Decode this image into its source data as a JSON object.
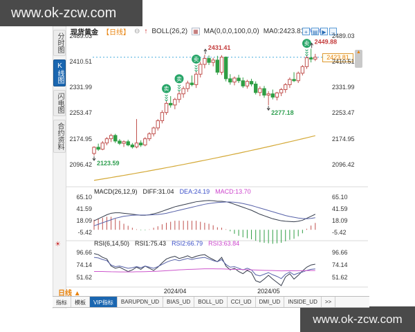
{
  "watermarks": {
    "top": "www.ok-zcw.com",
    "bottom": "www.ok-zcw.com"
  },
  "header": {
    "symbol": "现货黄金",
    "period": "【日线】",
    "minus_icon_glyph": "⊖",
    "up_arrow_glyph": "↑",
    "boll_label": "BOLL(26,2)",
    "ma_chip_glyph": "▦",
    "ma_settings": "MA(0,0,0,100,0,0)",
    "ma0_value": "MA0:2423.81",
    "ma0_extra": "MA0:"
  },
  "toolbar": {
    "icons": [
      {
        "name": "add-view-icon",
        "glyph": "+"
      },
      {
        "name": "panel-layout-icon",
        "glyph": "▤"
      },
      {
        "name": "play-icon",
        "glyph": "▶"
      },
      {
        "name": "expand-icon",
        "glyph": "→"
      }
    ]
  },
  "sidebar": {
    "tabs": [
      {
        "label": "分时图",
        "active": false
      },
      {
        "label": "K线图",
        "active": true
      },
      {
        "label": "闪电图",
        "active": false
      },
      {
        "label": "合约资料",
        "active": false
      }
    ]
  },
  "price_tag": {
    "value": "2423.81"
  },
  "period_selector": {
    "label": "日线 ▲"
  },
  "sun_icon_glyph": "☀",
  "indicator_tabs": {
    "items": [
      "指标",
      "模板",
      "VIP指标",
      "BARUPDN_UD",
      "BIAS_UD",
      "BOLL_UD",
      "CCI_UD",
      "DMI_UD",
      "INSIDE_UD",
      ">>"
    ],
    "active": "VIP指标"
  },
  "colors": {
    "up": "#c0504d",
    "down": "#2f9e44",
    "ma_line": "#d4a937",
    "dash_line": "#45aadd",
    "accent_orange": "#e8820c",
    "tab_blue": "#1a66b0",
    "annotation_red": "#c43c3c",
    "annotation_green": "#2e9e4f",
    "diff_line": "#333a4a",
    "dea_line": "#5560a8",
    "magenta": "#cc55cc",
    "marker_green": "#27a568"
  },
  "chart_data": {
    "type": "candlestick",
    "title": "现货黄金 日线",
    "price_axis_labels": [
      "2489.03",
      "2410.51",
      "2331.99",
      "2253.47",
      "2174.95",
      "2096.42"
    ],
    "x_labels": [
      "2024/04",
      "2024/05"
    ],
    "x_label_indices": [
      19,
      41
    ],
    "current_price": 2423.81,
    "candles_ohlc": [
      [
        2130,
        2152,
        2123.59,
        2149
      ],
      [
        2149,
        2160,
        2138,
        2143
      ],
      [
        2143,
        2168,
        2140,
        2162
      ],
      [
        2162,
        2180,
        2155,
        2175
      ],
      [
        2175,
        2190,
        2165,
        2185
      ],
      [
        2185,
        2190,
        2162,
        2168
      ],
      [
        2168,
        2174,
        2156,
        2161
      ],
      [
        2161,
        2170,
        2150,
        2166
      ],
      [
        2166,
        2172,
        2152,
        2156
      ],
      [
        2156,
        2162,
        2145,
        2150
      ],
      [
        2150,
        2235,
        2146,
        2162
      ],
      [
        2162,
        2170,
        2150,
        2156
      ],
      [
        2156,
        2180,
        2152,
        2175
      ],
      [
        2175,
        2195,
        2168,
        2190
      ],
      [
        2190,
        2212,
        2182,
        2208
      ],
      [
        2208,
        2235,
        2200,
        2230
      ],
      [
        2230,
        2262,
        2222,
        2255
      ],
      [
        2255,
        2290,
        2248,
        2283
      ],
      [
        2283,
        2305,
        2270,
        2278
      ],
      [
        2278,
        2300,
        2265,
        2295
      ],
      [
        2295,
        2320,
        2285,
        2312
      ],
      [
        2312,
        2335,
        2300,
        2328
      ],
      [
        2328,
        2352,
        2318,
        2345
      ],
      [
        2345,
        2368,
        2335,
        2340
      ],
      [
        2340,
        2380,
        2330,
        2372
      ],
      [
        2372,
        2410,
        2362,
        2402
      ],
      [
        2402,
        2431.41,
        2390,
        2420
      ],
      [
        2420,
        2429,
        2400,
        2408
      ],
      [
        2408,
        2422,
        2396,
        2415
      ],
      [
        2415,
        2428,
        2370,
        2378
      ],
      [
        2378,
        2430,
        2370,
        2424
      ],
      [
        2424,
        2426,
        2350,
        2358
      ],
      [
        2358,
        2372,
        2340,
        2348
      ],
      [
        2348,
        2365,
        2338,
        2360
      ],
      [
        2360,
        2370,
        2345,
        2352
      ],
      [
        2352,
        2362,
        2330,
        2336
      ],
      [
        2336,
        2355,
        2328,
        2350
      ],
      [
        2350,
        2358,
        2335,
        2342
      ],
      [
        2342,
        2350,
        2310,
        2316
      ],
      [
        2316,
        2335,
        2305,
        2328
      ],
      [
        2328,
        2336,
        2300,
        2308
      ],
      [
        2308,
        2320,
        2277.18,
        2312
      ],
      [
        2312,
        2325,
        2295,
        2302
      ],
      [
        2302,
        2318,
        2292,
        2315
      ],
      [
        2315,
        2330,
        2305,
        2325
      ],
      [
        2325,
        2345,
        2315,
        2340
      ],
      [
        2340,
        2362,
        2330,
        2356
      ],
      [
        2356,
        2378,
        2348,
        2352
      ],
      [
        2352,
        2380,
        2345,
        2375
      ],
      [
        2375,
        2400,
        2368,
        2395
      ],
      [
        2395,
        2428,
        2388,
        2422
      ],
      [
        2422,
        2449.88,
        2408,
        2418
      ],
      [
        2418,
        2434,
        2412,
        2423.81
      ]
    ],
    "ma100": [
      2048,
      2050.1,
      2052.2,
      2054.4,
      2056.6,
      2058.8,
      2061,
      2063.2,
      2065.4,
      2067.7,
      2070,
      2072.3,
      2074.6,
      2077,
      2079.4,
      2081.8,
      2084.2,
      2086.6,
      2089,
      2091.5,
      2094,
      2096.5,
      2099,
      2101.6,
      2104.2,
      2106.8,
      2109.4,
      2112,
      2114.6,
      2117.3,
      2120,
      2122.7,
      2125.4,
      2128.2,
      2130.9,
      2133.8,
      2136.6,
      2139.4,
      2142.2,
      2145.1,
      2148,
      2150.9,
      2153.8,
      2156.8,
      2159.8,
      2162.8,
      2165.8,
      2168.8,
      2171.8,
      2174.9,
      2178,
      2181.1,
      2184.2
    ],
    "sell_markers": {
      "glyph": "卖",
      "indices": [
        17,
        20,
        24,
        50
      ]
    },
    "annotations": [
      {
        "text": "2123.59",
        "index": 0,
        "position": "low",
        "color": "green"
      },
      {
        "text": "2277.18",
        "index": 41,
        "position": "low",
        "color": "green"
      },
      {
        "text": "2431.41",
        "index": 26,
        "position": "high",
        "color": "red"
      },
      {
        "text": "2449.88",
        "index": 51,
        "position": "high",
        "color": "red"
      }
    ],
    "macd": {
      "title": "MACD(26,12,9)",
      "diff_label": "DIFF:31.04",
      "dea_label": "DEA:24.19",
      "macd_label": "MACD:13.70",
      "axis_labels": [
        "65.10",
        "41.59",
        "18.09",
        "-5.42"
      ],
      "diff": [
        18,
        22,
        26,
        30,
        33,
        34,
        34,
        33,
        32,
        31,
        30,
        29,
        29,
        30,
        32,
        34,
        37,
        40,
        43,
        46,
        48,
        50,
        52,
        54,
        56,
        57,
        58,
        58.5,
        58,
        57,
        57,
        56,
        54,
        51,
        48,
        45,
        42,
        39,
        35,
        31,
        28,
        25,
        22,
        20,
        18,
        17,
        16.5,
        16,
        17,
        19,
        23,
        27,
        31.04
      ],
      "dea": [
        8,
        11,
        14,
        17,
        20,
        23,
        25,
        27,
        28,
        29,
        29.5,
        29.5,
        29.5,
        29.6,
        30,
        30.5,
        31.5,
        33,
        35,
        37,
        39,
        41,
        43,
        45,
        47,
        49,
        51,
        52.5,
        53.5,
        54.5,
        55,
        55.5,
        55.5,
        55,
        54,
        52.5,
        50.5,
        48.5,
        46,
        43.5,
        41,
        38.5,
        36,
        33.5,
        31,
        28.5,
        26.5,
        25,
        23.5,
        22.5,
        22,
        22.8,
        24.19
      ],
      "note": "histogram = 2*(DIFF-DEA)"
    },
    "rsi": {
      "title": "RSI(6,14,50)",
      "rsi1_label": "RSI1:75.43",
      "rsi2_label": "RSI2:66.79",
      "rsi3_label": "RSI3:63.84",
      "axis_labels": [
        "96.66",
        "74.14",
        "51.62"
      ],
      "rsi1": [
        95,
        93,
        88,
        85,
        72,
        68,
        70,
        66,
        62,
        65,
        70,
        66,
        72,
        68,
        64,
        70,
        78,
        85,
        88,
        90,
        86,
        88,
        91,
        87,
        90,
        92,
        93,
        88,
        84,
        80,
        88,
        72,
        65,
        68,
        62,
        58,
        64,
        60,
        45,
        42,
        48,
        55,
        48,
        42,
        36,
        52,
        58,
        48,
        55,
        63,
        70,
        74,
        75.43
      ],
      "rsi2": [
        88,
        87,
        84,
        82,
        74,
        71,
        72,
        70,
        68,
        69,
        71,
        69,
        72,
        70,
        68,
        71,
        75,
        79,
        82,
        84,
        82,
        84,
        86,
        84,
        86,
        87,
        88,
        85,
        82,
        80,
        84,
        75,
        70,
        71,
        68,
        65,
        68,
        65,
        56,
        54,
        57,
        60,
        56,
        53,
        49,
        57,
        61,
        56,
        59,
        61,
        64,
        66,
        66.79
      ],
      "rsi3": [
        62,
        62,
        62,
        61.8,
        61.5,
        61.4,
        61.3,
        61.2,
        61.2,
        61.3,
        61.5,
        61.6,
        61.8,
        62,
        62.2,
        62.5,
        63,
        63.5,
        64,
        64.5,
        65,
        65.4,
        65.8,
        66.1,
        66.4,
        66.7,
        67,
        67,
        67,
        66.8,
        66.8,
        66.5,
        66.2,
        66,
        65.8,
        65.5,
        65.3,
        65.1,
        64.7,
        64.4,
        64.2,
        64,
        63.8,
        63.5,
        63.2,
        63.3,
        63.5,
        63.4,
        63.5,
        63.5,
        63.6,
        63.8,
        63.84
      ]
    }
  }
}
